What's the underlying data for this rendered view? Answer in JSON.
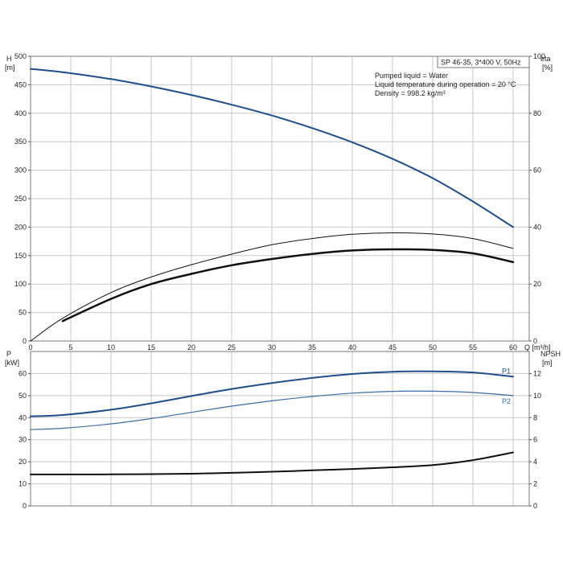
{
  "model_box": "SP 46-35, 3*400 V, 50Hz",
  "info_lines": [
    "Pumped liquid = Water",
    "Liquid temperature during operation = 20 °C",
    "Density = 998.2 kg/m³"
  ],
  "colors": {
    "blue": "#1f4e8c",
    "blue_light": "#3a6ea5",
    "black": "#111111",
    "grid": "#c8c8c8"
  },
  "chart_data": [
    {
      "type": "line",
      "name": "top",
      "xlabel": "Q [m³/h]",
      "ylabel_left": [
        "H",
        "[m]"
      ],
      "ylabel_right": [
        "eta",
        "[%]"
      ],
      "xlim": [
        0,
        62
      ],
      "x_ticks": [
        0,
        5,
        10,
        15,
        20,
        25,
        30,
        35,
        40,
        45,
        50,
        55,
        60
      ],
      "ylim_left": [
        0,
        500
      ],
      "left_ticks": [
        0,
        50,
        100,
        150,
        200,
        250,
        300,
        350,
        400,
        450,
        500
      ],
      "ylim_right": [
        0,
        100
      ],
      "right_ticks": [
        0,
        20,
        40,
        60,
        80,
        100
      ],
      "series": [
        {
          "axis": "left",
          "color": "#1f4e8c",
          "width": 2,
          "x": [
            0,
            4,
            10,
            15,
            20,
            25,
            30,
            35,
            40,
            45,
            50,
            55,
            60
          ],
          "y": [
            478,
            472,
            460,
            447,
            432,
            415,
            396,
            374,
            349,
            320,
            286,
            245,
            200
          ]
        },
        {
          "axis": "right",
          "color": "#111111",
          "width": 1,
          "x": [
            0,
            4,
            10,
            15,
            20,
            25,
            30,
            35,
            40,
            45,
            50,
            55,
            60
          ],
          "y": [
            0,
            8,
            17,
            22.5,
            26.8,
            30.5,
            33.8,
            36,
            37.5,
            38,
            37.6,
            36,
            32.5
          ]
        },
        {
          "axis": "right",
          "color": "#111111",
          "width": 2.5,
          "x": [
            4,
            10,
            15,
            20,
            25,
            30,
            35,
            40,
            45,
            50,
            55,
            60
          ],
          "y": [
            7,
            14.8,
            20,
            23.6,
            26.6,
            28.8,
            30.6,
            31.8,
            32.2,
            32,
            30.8,
            27.7
          ]
        }
      ]
    },
    {
      "type": "line",
      "name": "bottom",
      "ylabel_left": [
        "P",
        "[kW]"
      ],
      "ylabel_right": [
        "NPSH",
        "[m]"
      ],
      "xlim": [
        0,
        62
      ],
      "ylim_left": [
        0,
        70
      ],
      "left_ticks": [
        0,
        10,
        20,
        30,
        40,
        50,
        60
      ],
      "ylim_right": [
        0,
        14
      ],
      "right_ticks": [
        0,
        2,
        4,
        6,
        8,
        10,
        12
      ],
      "series": [
        {
          "name": "P1",
          "axis": "left",
          "color": "#1f4e8c",
          "width": 2,
          "x": [
            0,
            4,
            10,
            15,
            20,
            25,
            30,
            35,
            40,
            45,
            50,
            55,
            60
          ],
          "y": [
            40.6,
            41.2,
            43.6,
            46.5,
            49.8,
            53,
            55.7,
            58,
            59.8,
            60.8,
            61,
            60.5,
            58.6
          ]
        },
        {
          "name": "P2",
          "axis": "left",
          "color": "#3a6ea5",
          "width": 1.2,
          "x": [
            0,
            4,
            10,
            15,
            20,
            25,
            30,
            35,
            40,
            45,
            50,
            55,
            60
          ],
          "y": [
            34.6,
            35.2,
            37.2,
            39.6,
            42.4,
            45.2,
            47.6,
            49.6,
            51.1,
            51.9,
            52,
            51.4,
            50
          ]
        },
        {
          "axis": "right",
          "color": "#111111",
          "width": 2,
          "x": [
            0,
            4,
            10,
            15,
            20,
            25,
            30,
            35,
            40,
            45,
            50,
            55,
            60
          ],
          "y": [
            2.85,
            2.85,
            2.86,
            2.88,
            2.92,
            3.0,
            3.1,
            3.22,
            3.35,
            3.5,
            3.7,
            4.15,
            4.85
          ]
        }
      ]
    }
  ]
}
